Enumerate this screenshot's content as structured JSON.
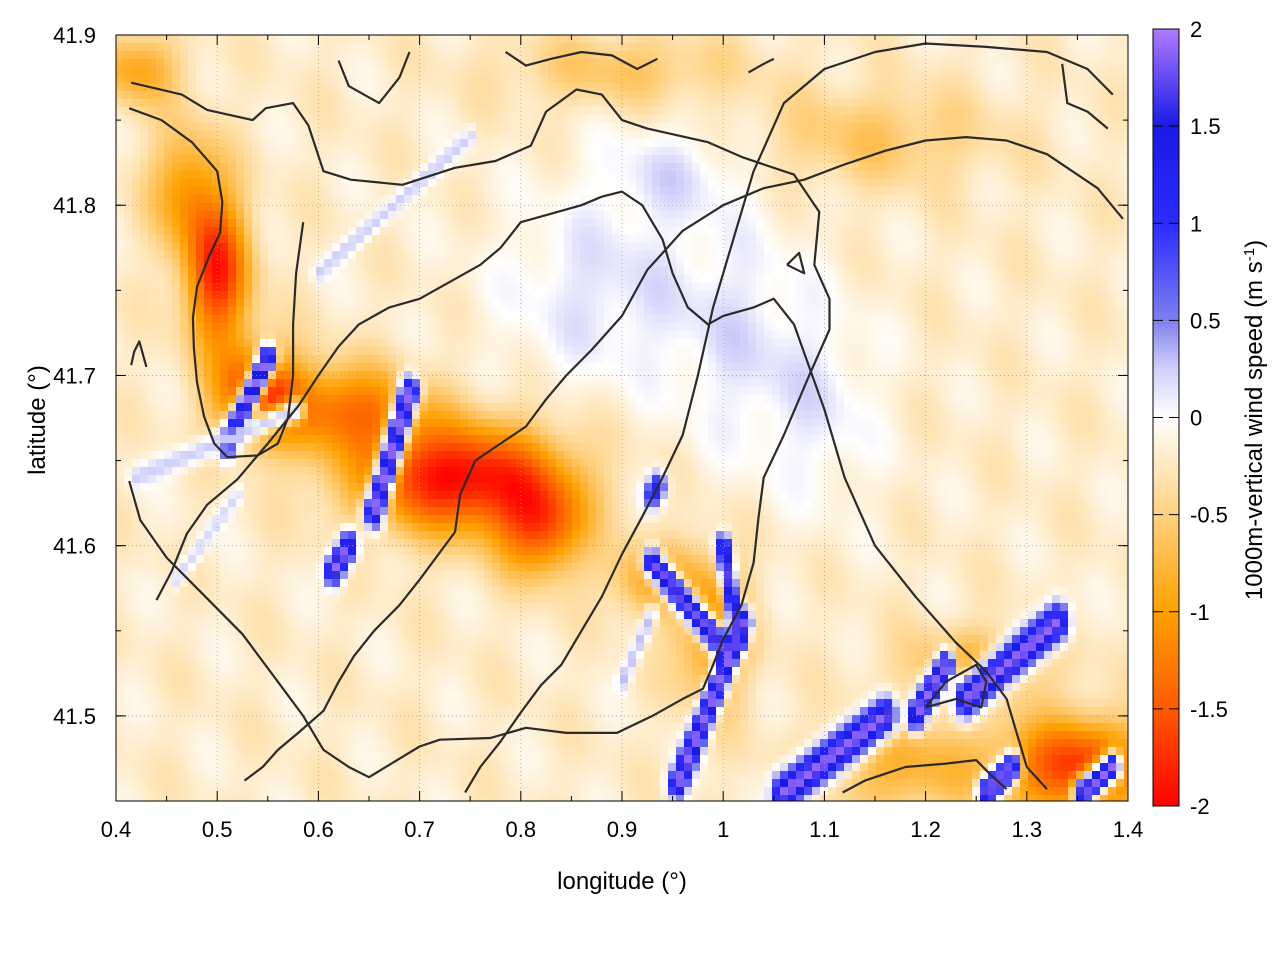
{
  "chart_data": {
    "type": "heatmap",
    "xlabel": "longitude (°)",
    "ylabel": "latitude (°)",
    "colorbar_label": "1000m-vertical wind speed (m s",
    "colorbar_label_sup": "-1",
    "colorbar_label_end": ")",
    "xlim": [
      0.4,
      1.4
    ],
    "ylim": [
      41.45,
      41.9
    ],
    "x_ticks": [
      0.4,
      0.5,
      0.6,
      0.7,
      0.8,
      0.9,
      1.0,
      1.1,
      1.2,
      1.3,
      1.4
    ],
    "x_tick_labels": [
      "0.4",
      "0.5",
      "0.6",
      "0.7",
      "0.8",
      "0.9",
      "1",
      "1.1",
      "1.2",
      "1.3",
      "1.4"
    ],
    "y_ticks": [
      41.5,
      41.6,
      41.7,
      41.8,
      41.9
    ],
    "y_tick_labels": [
      "41.5",
      "41.6",
      "41.7",
      "41.8",
      "41.9"
    ],
    "colorbar_range": [
      -2,
      2
    ],
    "colorbar_ticks": [
      2,
      1.5,
      1,
      0.5,
      0,
      -0.5,
      -1,
      -1.5,
      -2
    ],
    "colorbar_tick_labels": [
      "2",
      "1.5",
      "1",
      "0.5",
      "0",
      "-0.5",
      "-1",
      "-1.5",
      "-2"
    ],
    "colormap": [
      {
        "value": 2.0,
        "color": "#b07bff"
      },
      {
        "value": 1.5,
        "color": "#1a1ae6"
      },
      {
        "value": 1.0,
        "color": "#2b2bff"
      },
      {
        "value": 0.5,
        "color": "#7f7ff0"
      },
      {
        "value": 0.25,
        "color": "#d0d0fa"
      },
      {
        "value": 0.0,
        "color": "#ffffff"
      },
      {
        "value": -0.5,
        "color": "#ffd180"
      },
      {
        "value": -1.0,
        "color": "#ffa000"
      },
      {
        "value": -1.5,
        "color": "#ff5a00"
      },
      {
        "value": -2.0,
        "color": "#ff0000"
      }
    ],
    "grid": true,
    "background_level": -0.2,
    "features": [
      {
        "type": "gaussian",
        "x": 0.5,
        "y": 41.76,
        "sx": 0.022,
        "sy": 0.03,
        "value": -1.6
      },
      {
        "type": "gaussian",
        "x": 0.54,
        "y": 41.69,
        "sx": 0.03,
        "sy": 0.02,
        "value": -1.4
      },
      {
        "type": "gaussian",
        "x": 0.47,
        "y": 41.81,
        "sx": 0.025,
        "sy": 0.025,
        "value": -0.8
      },
      {
        "type": "gaussian",
        "x": 0.63,
        "y": 41.68,
        "sx": 0.05,
        "sy": 0.018,
        "value": -1.1
      },
      {
        "type": "gaussian",
        "x": 0.74,
        "y": 41.64,
        "sx": 0.07,
        "sy": 0.022,
        "value": -1.8
      },
      {
        "type": "gaussian",
        "x": 0.82,
        "y": 41.61,
        "sx": 0.03,
        "sy": 0.02,
        "value": -1.2
      },
      {
        "type": "gaussian",
        "x": 0.99,
        "y": 41.55,
        "sx": 0.025,
        "sy": 0.03,
        "value": -0.9
      },
      {
        "type": "gaussian",
        "x": 0.93,
        "y": 41.58,
        "sx": 0.03,
        "sy": 0.015,
        "value": -0.7
      },
      {
        "type": "gaussian",
        "x": 1.35,
        "y": 41.47,
        "sx": 0.05,
        "sy": 0.02,
        "value": -1.5
      },
      {
        "type": "gaussian",
        "x": 1.18,
        "y": 41.47,
        "sx": 0.06,
        "sy": 0.02,
        "value": -0.6
      },
      {
        "type": "gaussian",
        "x": 1.25,
        "y": 41.53,
        "sx": 0.05,
        "sy": 0.015,
        "value": -0.6
      },
      {
        "type": "gaussian",
        "x": 1.15,
        "y": 41.84,
        "sx": 0.08,
        "sy": 0.02,
        "value": -0.4
      },
      {
        "type": "gaussian",
        "x": 0.9,
        "y": 41.88,
        "sx": 0.08,
        "sy": 0.015,
        "value": -0.4
      },
      {
        "type": "gaussian",
        "x": 0.42,
        "y": 41.88,
        "sx": 0.03,
        "sy": 0.015,
        "value": -0.7
      },
      {
        "type": "gaussian",
        "x": 0.88,
        "y": 41.75,
        "sx": 0.07,
        "sy": 0.04,
        "value": 0.35
      },
      {
        "type": "gaussian",
        "x": 1.02,
        "y": 41.72,
        "sx": 0.05,
        "sy": 0.05,
        "value": 0.3
      },
      {
        "type": "gaussian",
        "x": 0.95,
        "y": 41.82,
        "sx": 0.05,
        "sy": 0.02,
        "value": 0.3
      },
      {
        "type": "gaussian",
        "x": 1.1,
        "y": 41.68,
        "sx": 0.04,
        "sy": 0.04,
        "value": 0.25
      },
      {
        "type": "ridge",
        "x1": 0.51,
        "y1": 41.66,
        "x2": 0.55,
        "y2": 41.71,
        "w": 0.006,
        "value": 1.9
      },
      {
        "type": "ridge",
        "x1": 0.655,
        "y1": 41.62,
        "x2": 0.69,
        "y2": 41.69,
        "w": 0.007,
        "value": 1.9
      },
      {
        "type": "ridge",
        "x1": 0.615,
        "y1": 41.585,
        "x2": 0.63,
        "y2": 41.6,
        "w": 0.006,
        "value": 1.9
      },
      {
        "type": "ridge",
        "x1": 0.93,
        "y1": 41.59,
        "x2": 1.0,
        "y2": 41.54,
        "w": 0.006,
        "value": 1.8
      },
      {
        "type": "ridge",
        "x1": 0.955,
        "y1": 41.46,
        "x2": 1.02,
        "y2": 41.555,
        "w": 0.006,
        "value": 1.9
      },
      {
        "type": "ridge",
        "x1": 1.0,
        "y1": 41.6,
        "x2": 1.015,
        "y2": 41.545,
        "w": 0.005,
        "value": 1.7
      },
      {
        "type": "ridge",
        "x1": 0.93,
        "y1": 41.63,
        "x2": 0.935,
        "y2": 41.635,
        "w": 0.006,
        "value": 1.2
      },
      {
        "type": "ridge",
        "x1": 1.06,
        "y1": 41.455,
        "x2": 1.16,
        "y2": 41.5,
        "w": 0.008,
        "value": 1.9
      },
      {
        "type": "ridge",
        "x1": 1.24,
        "y1": 41.51,
        "x2": 1.33,
        "y2": 41.555,
        "w": 0.008,
        "value": 1.9
      },
      {
        "type": "ridge",
        "x1": 1.19,
        "y1": 41.5,
        "x2": 1.22,
        "y2": 41.53,
        "w": 0.006,
        "value": 1.9
      },
      {
        "type": "ridge",
        "x1": 1.26,
        "y1": 41.455,
        "x2": 1.285,
        "y2": 41.47,
        "w": 0.006,
        "value": 1.9
      },
      {
        "type": "ridge",
        "x1": 1.355,
        "y1": 41.455,
        "x2": 1.385,
        "y2": 41.47,
        "w": 0.006,
        "value": 1.9
      },
      {
        "type": "ridge",
        "x1": 0.42,
        "y1": 41.64,
        "x2": 0.58,
        "y2": 41.68,
        "w": 0.005,
        "value": 0.25
      },
      {
        "type": "ridge",
        "x1": 0.6,
        "y1": 41.76,
        "x2": 0.75,
        "y2": 41.84,
        "w": 0.004,
        "value": 0.25
      },
      {
        "type": "ridge",
        "x1": 0.46,
        "y1": 41.58,
        "x2": 0.52,
        "y2": 41.63,
        "w": 0.004,
        "value": 0.2
      },
      {
        "type": "ridge",
        "x1": 0.9,
        "y1": 41.52,
        "x2": 0.93,
        "y2": 41.56,
        "w": 0.004,
        "value": 0.3
      }
    ],
    "contours": [
      [
        [
          0.415,
          41.872
        ],
        [
          0.465,
          41.865
        ],
        [
          0.49,
          41.856
        ],
        [
          0.535,
          41.85
        ],
        [
          0.548,
          41.857
        ],
        [
          0.575,
          41.86
        ],
        [
          0.59,
          41.847
        ],
        [
          0.605,
          41.82
        ],
        [
          0.632,
          41.815
        ],
        [
          0.683,
          41.812
        ],
        [
          0.735,
          41.822
        ],
        [
          0.775,
          41.826
        ],
        [
          0.81,
          41.835
        ],
        [
          0.825,
          41.855
        ],
        [
          0.855,
          41.868
        ],
        [
          0.88,
          41.865
        ],
        [
          0.9,
          41.85
        ],
        [
          0.925,
          41.845
        ],
        [
          0.985,
          41.837
        ],
        [
          1.02,
          41.828
        ],
        [
          1.07,
          41.818
        ],
        [
          1.095,
          41.796
        ],
        [
          1.09,
          41.765
        ],
        [
          1.105,
          41.745
        ],
        [
          1.105,
          41.727
        ],
        [
          1.085,
          41.7
        ],
        [
          1.06,
          41.665
        ],
        [
          1.04,
          41.64
        ],
        [
          1.035,
          41.617
        ],
        [
          1.03,
          41.59
        ],
        [
          1.018,
          41.565
        ],
        [
          1.0,
          41.545
        ],
        [
          0.99,
          41.53
        ],
        [
          0.98,
          41.516
        ],
        [
          0.96,
          41.51
        ],
        [
          0.93,
          41.5
        ],
        [
          0.895,
          41.49
        ],
        [
          0.845,
          41.49
        ],
        [
          0.805,
          41.493
        ],
        [
          0.77,
          41.487
        ],
        [
          0.72,
          41.486
        ],
        [
          0.7,
          41.482
        ],
        [
          0.675,
          41.473
        ],
        [
          0.65,
          41.464
        ],
        [
          0.63,
          41.47
        ],
        [
          0.605,
          41.48
        ],
        [
          0.585,
          41.5
        ],
        [
          0.56,
          41.52
        ],
        [
          0.525,
          41.548
        ],
        [
          0.485,
          41.572
        ],
        [
          0.45,
          41.593
        ],
        [
          0.424,
          41.615
        ],
        [
          0.413,
          41.638
        ]
      ],
      [
        [
          0.413,
          41.857
        ],
        [
          0.445,
          41.85
        ],
        [
          0.475,
          41.837
        ],
        [
          0.5,
          41.82
        ],
        [
          0.505,
          41.802
        ],
        [
          0.503,
          41.784
        ],
        [
          0.492,
          41.77
        ],
        [
          0.48,
          41.752
        ],
        [
          0.476,
          41.734
        ],
        [
          0.477,
          41.716
        ],
        [
          0.48,
          41.696
        ],
        [
          0.487,
          41.676
        ],
        [
          0.497,
          41.66
        ],
        [
          0.51,
          41.652
        ],
        [
          0.54,
          41.653
        ],
        [
          0.56,
          41.66
        ],
        [
          0.57,
          41.675
        ],
        [
          0.575,
          41.7
        ],
        [
          0.575,
          41.73
        ],
        [
          0.578,
          41.76
        ],
        [
          0.585,
          41.79
        ]
      ],
      [
        [
          0.415,
          41.706
        ],
        [
          0.418,
          41.714
        ],
        [
          0.423,
          41.72
        ],
        [
          0.43,
          41.705
        ]
      ],
      [
        [
          0.44,
          41.568
        ],
        [
          0.455,
          41.585
        ],
        [
          0.47,
          41.607
        ],
        [
          0.49,
          41.624
        ],
        [
          0.52,
          41.639
        ],
        [
          0.55,
          41.66
        ],
        [
          0.58,
          41.682
        ],
        [
          0.6,
          41.7
        ],
        [
          0.62,
          41.717
        ],
        [
          0.64,
          41.73
        ],
        [
          0.67,
          41.74
        ],
        [
          0.7,
          41.745
        ],
        [
          0.73,
          41.755
        ],
        [
          0.76,
          41.765
        ],
        [
          0.78,
          41.775
        ],
        [
          0.8,
          41.79
        ],
        [
          0.83,
          41.795
        ],
        [
          0.86,
          41.8
        ],
        [
          0.88,
          41.805
        ],
        [
          0.9,
          41.808
        ],
        [
          0.92,
          41.8
        ],
        [
          0.94,
          41.78
        ],
        [
          0.95,
          41.76
        ],
        [
          0.965,
          41.74
        ],
        [
          0.985,
          41.73
        ],
        [
          1.0,
          41.735
        ],
        [
          1.03,
          41.74
        ],
        [
          1.05,
          41.745
        ],
        [
          1.07,
          41.73
        ],
        [
          1.1,
          41.68
        ],
        [
          1.12,
          41.64
        ],
        [
          1.15,
          41.6
        ],
        [
          1.19,
          41.57
        ],
        [
          1.23,
          41.543
        ],
        [
          1.26,
          41.526
        ],
        [
          1.28,
          41.51
        ],
        [
          1.3,
          41.47
        ],
        [
          1.32,
          41.457
        ]
      ],
      [
        [
          0.527,
          41.462
        ],
        [
          0.545,
          41.47
        ],
        [
          0.56,
          41.48
        ],
        [
          0.58,
          41.49
        ],
        [
          0.605,
          41.503
        ],
        [
          0.62,
          41.52
        ],
        [
          0.635,
          41.535
        ],
        [
          0.655,
          41.55
        ],
        [
          0.68,
          41.565
        ],
        [
          0.7,
          41.58
        ],
        [
          0.72,
          41.596
        ],
        [
          0.735,
          41.608
        ],
        [
          0.74,
          41.63
        ],
        [
          0.755,
          41.65
        ],
        [
          0.78,
          41.66
        ],
        [
          0.805,
          41.67
        ],
        [
          0.825,
          41.686
        ],
        [
          0.845,
          41.7
        ],
        [
          0.87,
          41.715
        ],
        [
          0.9,
          41.735
        ],
        [
          0.925,
          41.762
        ],
        [
          0.96,
          41.785
        ],
        [
          1.0,
          41.8
        ],
        [
          1.04,
          41.81
        ],
        [
          1.08,
          41.815
        ],
        [
          1.12,
          41.824
        ],
        [
          1.16,
          41.832
        ],
        [
          1.2,
          41.838
        ],
        [
          1.24,
          41.84
        ],
        [
          1.28,
          41.838
        ],
        [
          1.32,
          41.83
        ],
        [
          1.37,
          41.81
        ],
        [
          1.395,
          41.792
        ]
      ],
      [
        [
          1.063,
          41.765
        ],
        [
          1.08,
          41.76
        ],
        [
          1.075,
          41.772
        ],
        [
          1.063,
          41.765
        ]
      ],
      [
        [
          0.745,
          41.455
        ],
        [
          0.76,
          41.47
        ],
        [
          0.78,
          41.485
        ],
        [
          0.8,
          41.502
        ],
        [
          0.82,
          41.518
        ],
        [
          0.84,
          41.53
        ],
        [
          0.86,
          41.55
        ],
        [
          0.88,
          41.57
        ],
        [
          0.9,
          41.595
        ],
        [
          0.92,
          41.617
        ],
        [
          0.94,
          41.64
        ],
        [
          0.96,
          41.665
        ],
        [
          0.975,
          41.7
        ],
        [
          0.99,
          41.74
        ],
        [
          1.01,
          41.78
        ],
        [
          1.03,
          41.82
        ],
        [
          1.06,
          41.86
        ],
        [
          1.1,
          41.88
        ],
        [
          1.15,
          41.89
        ],
        [
          1.2,
          41.895
        ],
        [
          1.26,
          41.893
        ],
        [
          1.32,
          41.89
        ],
        [
          1.36,
          41.88
        ],
        [
          1.385,
          41.865
        ]
      ],
      [
        [
          1.118,
          41.455
        ],
        [
          1.14,
          41.462
        ],
        [
          1.18,
          41.47
        ],
        [
          1.22,
          41.472
        ],
        [
          1.25,
          41.474
        ],
        [
          1.265,
          41.465
        ],
        [
          1.28,
          41.457
        ]
      ],
      [
        [
          1.2,
          41.505
        ],
        [
          1.23,
          41.51
        ],
        [
          1.255,
          41.505
        ],
        [
          1.26,
          41.52
        ],
        [
          1.25,
          41.53
        ],
        [
          1.22,
          41.52
        ],
        [
          1.2,
          41.505
        ]
      ],
      [
        [
          0.62,
          41.885
        ],
        [
          0.63,
          41.87
        ],
        [
          0.66,
          41.86
        ],
        [
          0.68,
          41.875
        ],
        [
          0.69,
          41.89
        ]
      ],
      [
        [
          0.785,
          41.89
        ],
        [
          0.805,
          41.882
        ],
        [
          0.83,
          41.886
        ],
        [
          0.86,
          41.89
        ],
        [
          0.89,
          41.888
        ],
        [
          0.915,
          41.88
        ],
        [
          0.935,
          41.886
        ]
      ],
      [
        [
          1.025,
          41.878
        ],
        [
          1.04,
          41.883
        ],
        [
          1.05,
          41.886
        ]
      ],
      [
        [
          1.335,
          41.883
        ],
        [
          1.34,
          41.86
        ],
        [
          1.36,
          41.855
        ],
        [
          1.38,
          41.845
        ]
      ]
    ]
  }
}
